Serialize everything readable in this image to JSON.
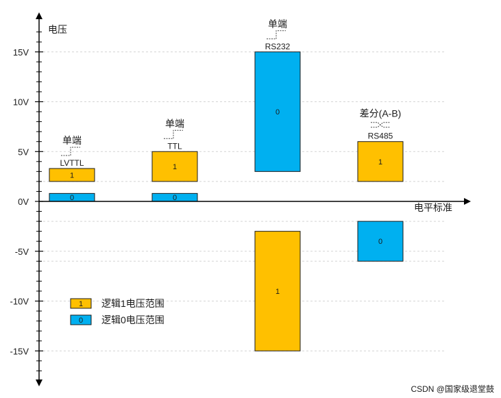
{
  "chart_data": {
    "type": "bar",
    "title": "",
    "ylabel": "电压",
    "xlabel": "电平标准",
    "ylim": [
      -18,
      18
    ],
    "y_ticks": [
      {
        "value": 15,
        "label": "15V"
      },
      {
        "value": 10,
        "label": "10V"
      },
      {
        "value": 5,
        "label": "5V"
      },
      {
        "value": 0,
        "label": "0V"
      },
      {
        "value": -5,
        "label": "-5V"
      },
      {
        "value": -10,
        "label": "-10V"
      },
      {
        "value": -15,
        "label": "-15V"
      }
    ],
    "categories": [
      "LVTTL",
      "TTL",
      "RS232",
      "RS485"
    ],
    "category_annotations": [
      "单端",
      "单端",
      "单端",
      "差分(A-B)"
    ],
    "series": [
      {
        "name": "逻辑1电压范围",
        "color": "#FFC000",
        "ranges": [
          [
            2.0,
            3.3
          ],
          [
            2.0,
            5.0
          ],
          [
            -15.0,
            -3.0
          ],
          [
            2.0,
            6.0
          ]
        ],
        "labels": [
          "1",
          "1",
          "1",
          "1"
        ]
      },
      {
        "name": "逻辑0电压范围",
        "color": "#00B0F0",
        "ranges": [
          [
            0.0,
            0.8
          ],
          [
            0.0,
            0.8
          ],
          [
            3.0,
            15.0
          ],
          [
            -6.0,
            -2.0
          ]
        ],
        "labels": [
          "0",
          "0",
          "0",
          "0"
        ]
      }
    ],
    "legend": {
      "position": "bottom-left",
      "entries": [
        {
          "symbol": "1",
          "label": "逻辑1电压范围",
          "color": "#FFC000"
        },
        {
          "symbol": "0",
          "label": "逻辑0电压范围",
          "color": "#00B0F0"
        }
      ]
    }
  },
  "watermark": "CSDN @国家级退堂鼓"
}
